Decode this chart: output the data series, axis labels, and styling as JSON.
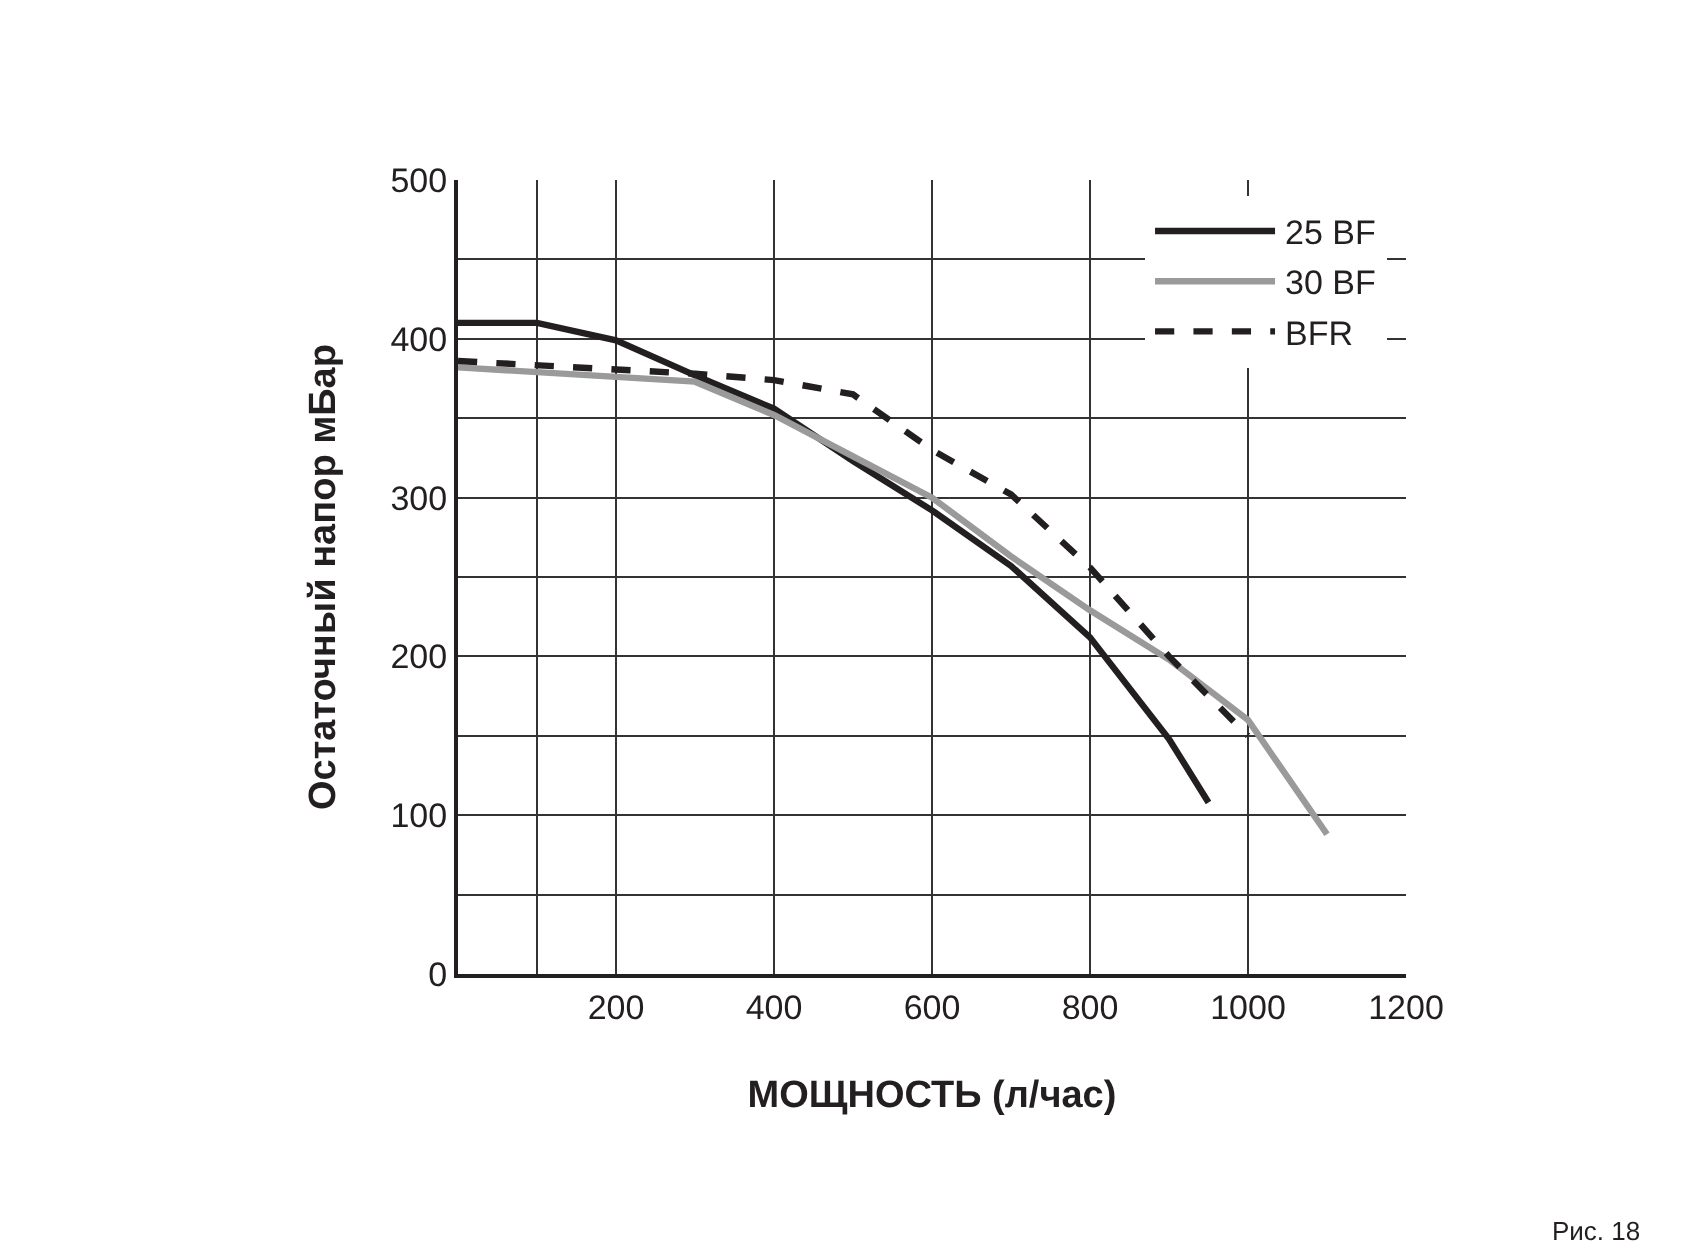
{
  "chart_data": {
    "type": "line",
    "xlabel": "МОЩНОСТЬ (л/час)",
    "ylabel": "Остаточный напор мБар",
    "annotations": [
      "Рис. 18"
    ],
    "series": [
      {
        "name": "25 BF",
        "color": "#231f20",
        "line_style": "solid",
        "x": [
          0,
          100,
          200,
          300,
          400,
          500,
          600,
          700,
          800,
          900,
          950
        ],
        "values": [
          410,
          410,
          399,
          377,
          356,
          323,
          292,
          257,
          212,
          148,
          108
        ]
      },
      {
        "name": "30 BF",
        "color": "#9a9a9a",
        "line_style": "solid",
        "x": [
          0,
          300,
          400,
          500,
          600,
          700,
          800,
          900,
          1000,
          1100
        ],
        "values": [
          382,
          373,
          352,
          326,
          300,
          263,
          229,
          198,
          160,
          88
        ]
      },
      {
        "name": "BFR",
        "color": "#231f20",
        "line_style": "dashed",
        "x": [
          0,
          300,
          400,
          500,
          600,
          700,
          800,
          900,
          1000
        ],
        "values": [
          386,
          378,
          374,
          365,
          330,
          302,
          256,
          200,
          150
        ]
      }
    ],
    "xlim": [
      0,
      1200
    ],
    "ylim": [
      0,
      500
    ],
    "xticks": [
      {
        "value": 100,
        "label": null
      },
      200,
      400,
      600,
      800,
      1000,
      1200
    ],
    "yticks": [
      0,
      {
        "value": 50,
        "label": null
      },
      100,
      {
        "value": 150,
        "label": null
      },
      200,
      {
        "value": 250,
        "label": null
      },
      300,
      {
        "value": 350,
        "label": null
      },
      400,
      {
        "value": 450,
        "label": null
      },
      500
    ],
    "grid": true,
    "legend": "top right",
    "marker": "none"
  }
}
